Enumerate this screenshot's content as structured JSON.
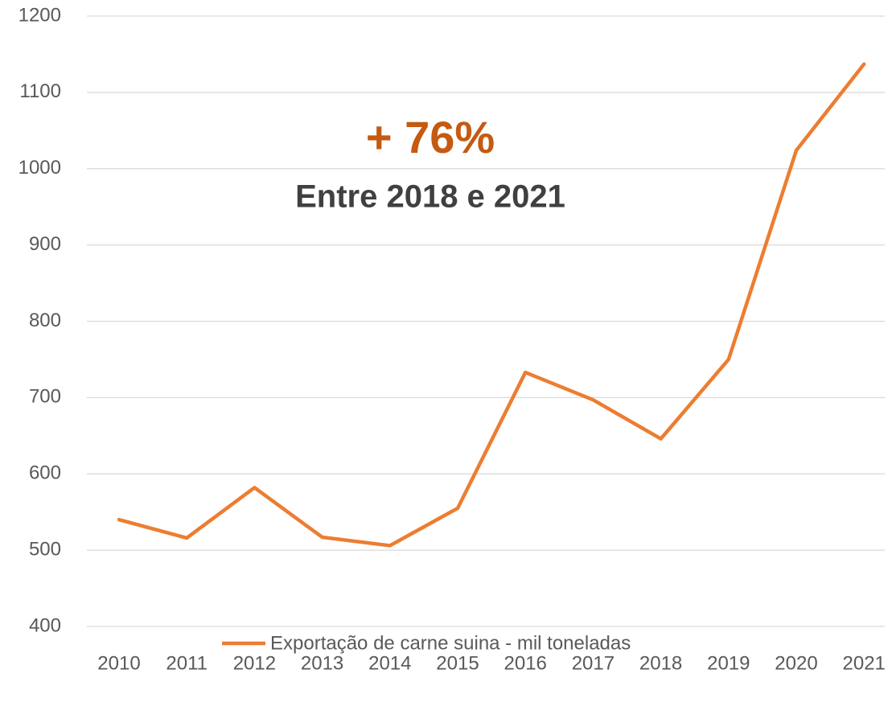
{
  "chart_data": {
    "type": "line",
    "categories": [
      "2010",
      "2011",
      "2012",
      "2013",
      "2014",
      "2015",
      "2016",
      "2017",
      "2018",
      "2019",
      "2020",
      "2021"
    ],
    "series": [
      {
        "name": "Exportação de carne suina - mil toneladas",
        "color": "#ed7d31",
        "values": [
          540,
          516,
          582,
          517,
          506,
          555,
          733,
          697,
          646,
          750,
          1024,
          1137
        ]
      }
    ],
    "ylim": [
      400,
      1200
    ],
    "yticks": [
      400,
      500,
      600,
      700,
      800,
      900,
      1000,
      1100,
      1200
    ],
    "grid": true,
    "annotations": [
      "+ 76%",
      "Entre 2018 e 2021"
    ],
    "legend": "bottom"
  }
}
